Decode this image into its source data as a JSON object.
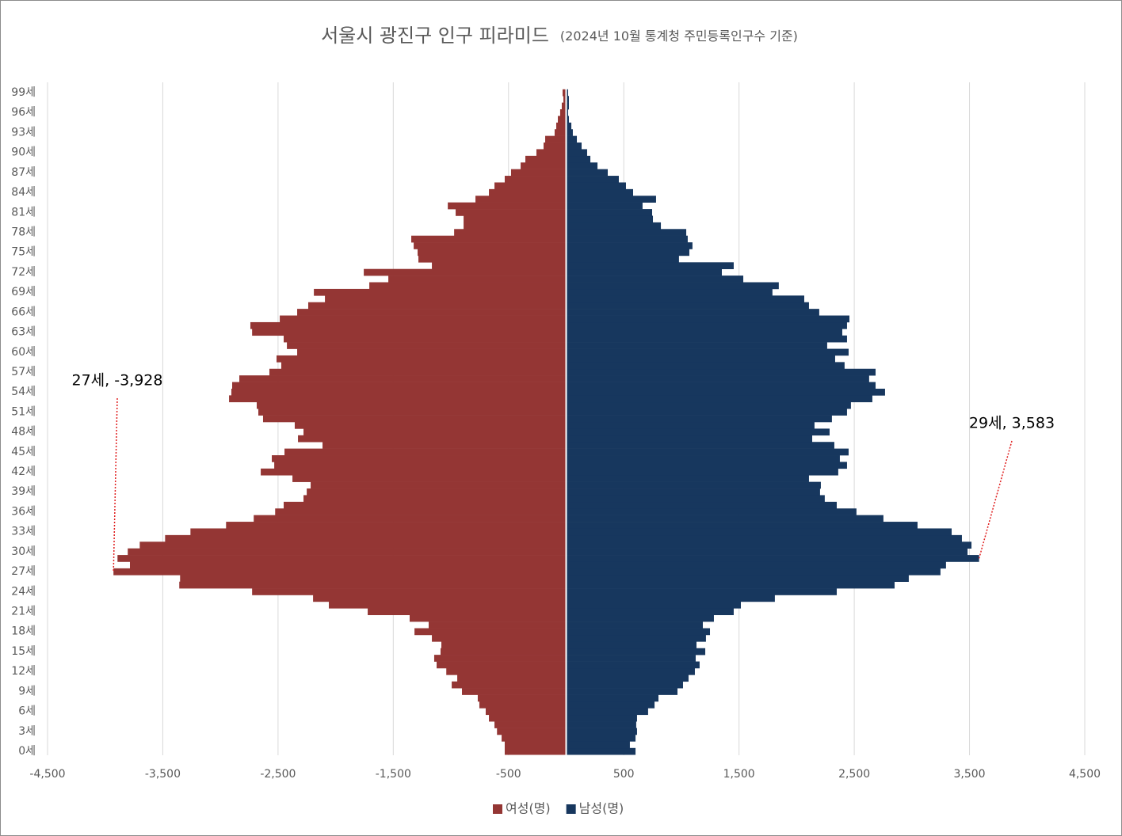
{
  "chart_data": {
    "type": "pyramid",
    "title": "서울시 광진구 인구 피라미드",
    "subtitle": "(2024년 10월 통계청 주민등록인구수 기준)",
    "categories": [
      "0세",
      null,
      null,
      "3세",
      null,
      null,
      "6세",
      null,
      null,
      "9세",
      null,
      null,
      "12세",
      null,
      null,
      "15세",
      null,
      null,
      "18세",
      null,
      null,
      "21세",
      null,
      null,
      "24세",
      null,
      null,
      "27세",
      null,
      null,
      "30세",
      null,
      null,
      "33세",
      null,
      null,
      "36세",
      null,
      null,
      "39세",
      null,
      null,
      "42세",
      null,
      null,
      "45세",
      null,
      null,
      "48세",
      null,
      null,
      "51세",
      null,
      null,
      "54세",
      null,
      null,
      "57세",
      null,
      null,
      "60세",
      null,
      null,
      "63세",
      null,
      null,
      "66세",
      null,
      null,
      "69세",
      null,
      null,
      "72세",
      null,
      null,
      "75세",
      null,
      null,
      "78세",
      null,
      null,
      "81세",
      null,
      null,
      "84세",
      null,
      null,
      "87세",
      null,
      null,
      "90세",
      null,
      null,
      "93세",
      null,
      null,
      "96세",
      null,
      null,
      "99세"
    ],
    "series": [
      {
        "name": "여성(명)",
        "color": "#943634",
        "values": [
          -533,
          -533,
          -560,
          -600,
          -622,
          -670,
          -698,
          -753,
          -767,
          -904,
          -993,
          -945,
          -1040,
          -1124,
          -1145,
          -1090,
          -1083,
          -1165,
          -1316,
          -1193,
          -1358,
          -1722,
          -2059,
          -2196,
          -2725,
          -3357,
          -3350,
          -3928,
          -3785,
          -3893,
          -3804,
          -3700,
          -3480,
          -3260,
          -2951,
          -2711,
          -2525,
          -2451,
          -2279,
          -2251,
          -2217,
          -2375,
          -2650,
          -2533,
          -2554,
          -2444,
          -2114,
          -2327,
          -2279,
          -2355,
          -2630,
          -2671,
          -2685,
          -2925,
          -2905,
          -2898,
          -2836,
          -2575,
          -2472,
          -2513,
          -2334,
          -2423,
          -2451,
          -2725,
          -2740,
          -2485,
          -2334,
          -2238,
          -2093,
          -2189,
          -1708,
          -1543,
          -1756,
          -1165,
          -1282,
          -1289,
          -1323,
          -1344,
          -972,
          -890,
          -890,
          -959,
          -1027,
          -787,
          -670,
          -622,
          -533,
          -478,
          -395,
          -354,
          -258,
          -196,
          -182,
          -100,
          -86,
          -72,
          -52,
          -38,
          -24,
          -31
        ]
      },
      {
        "name": "남성(명)",
        "color": "#17375e",
        "values": [
          602,
          553,
          602,
          615,
          608,
          615,
          711,
          767,
          801,
          966,
          1014,
          1062,
          1117,
          1158,
          1124,
          1207,
          1131,
          1213,
          1248,
          1186,
          1282,
          1454,
          1516,
          1811,
          2348,
          2850,
          2973,
          3248,
          3296,
          3583,
          3483,
          3517,
          3434,
          3345,
          3049,
          2753,
          2519,
          2348,
          2244,
          2203,
          2210,
          2107,
          2361,
          2437,
          2375,
          2451,
          2327,
          2135,
          2286,
          2155,
          2306,
          2437,
          2471,
          2657,
          2767,
          2685,
          2629,
          2685,
          2416,
          2334,
          2451,
          2265,
          2437,
          2396,
          2437,
          2458,
          2196,
          2107,
          2066,
          1790,
          1845,
          1537,
          1351,
          1454,
          979,
          1069,
          1096,
          1055,
          1042,
          822,
          753,
          746,
          663,
          780,
          581,
          519,
          457,
          361,
          272,
          210,
          182,
          134,
          93,
          58,
          45,
          24,
          17,
          24,
          24,
          17
        ]
      }
    ],
    "xlim": [
      -4500,
      4500
    ],
    "xticks": [
      {
        "value": -4500,
        "label": "-4,500"
      },
      {
        "value": -3500,
        "label": "-3,500"
      },
      {
        "value": -2500,
        "label": "-2,500"
      },
      {
        "value": -1500,
        "label": "-1,500"
      },
      -500,
      500,
      {
        "value": 1500,
        "label": "1,500"
      },
      {
        "value": 2500,
        "label": "2,500"
      },
      {
        "value": 3500,
        "label": "3,500"
      },
      {
        "value": 4500,
        "label": "4,500"
      }
    ],
    "grid": true,
    "legend": "bottom",
    "annotations": [
      "27세, -3,928",
      "29세, 3,583"
    ]
  }
}
